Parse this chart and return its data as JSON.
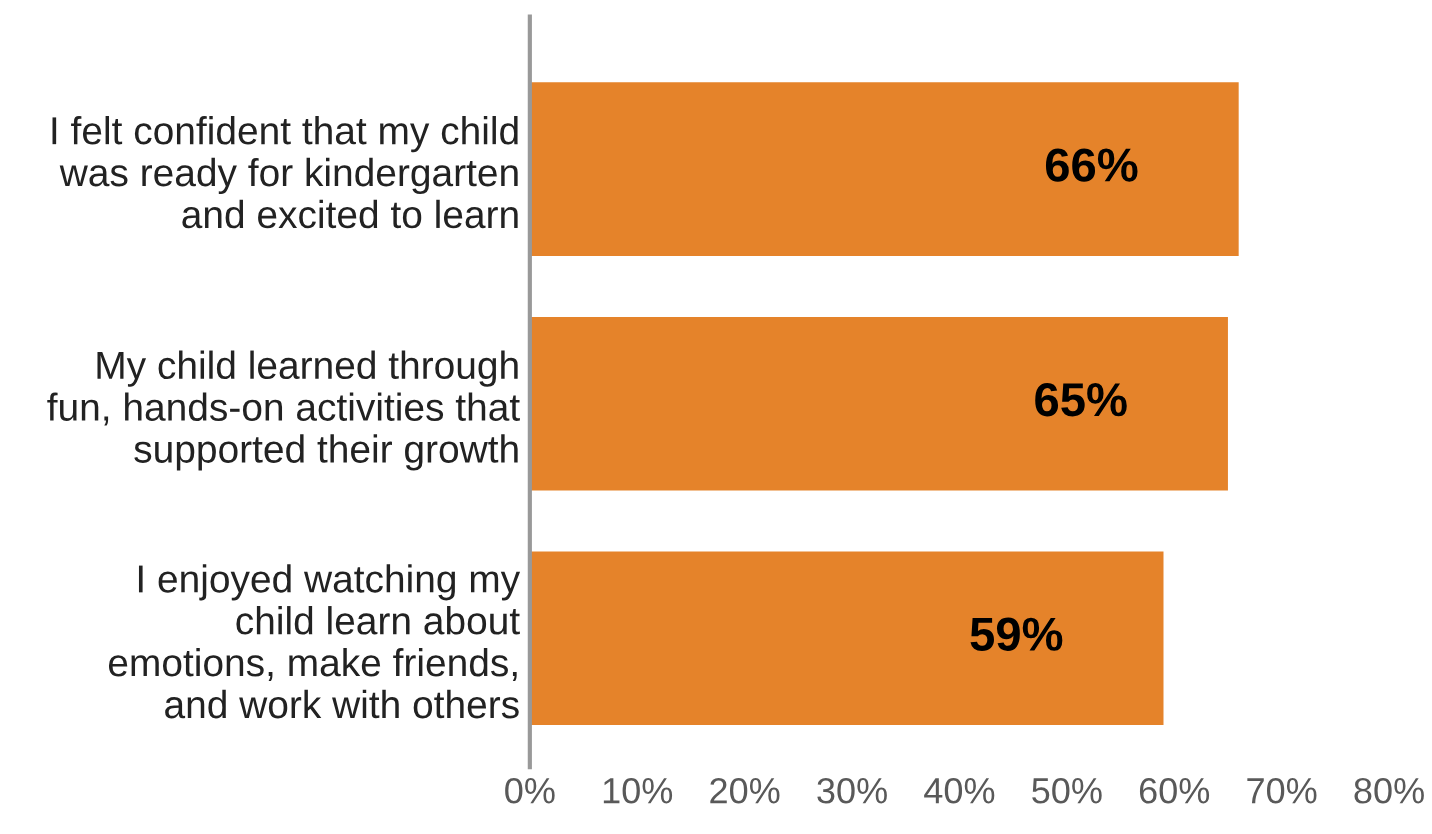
{
  "chart_data": {
    "type": "bar",
    "orientation": "horizontal",
    "categories": [
      "I felt confident that my child\nwas ready for kindergarten\nand excited to learn",
      "My child learned through\nfun, hands-on activities that\nsupported their growth",
      "I enjoyed watching my\nchild learn about\nemotions, make friends,\nand work with others"
    ],
    "values": [
      66,
      65,
      59
    ],
    "value_labels": [
      "66%",
      "65%",
      "59%"
    ],
    "color": "#e5832a",
    "xlim": [
      0,
      80
    ],
    "xticks": [
      {
        "value": 0,
        "label": "0%"
      },
      {
        "value": 10,
        "label": "10%"
      },
      {
        "value": 20,
        "label": "20%"
      },
      {
        "value": 30,
        "label": "30%"
      },
      {
        "value": 40,
        "label": "40%"
      },
      {
        "value": 50,
        "label": "50%"
      },
      {
        "value": 60,
        "label": "60%"
      },
      {
        "value": 70,
        "label": "70%"
      },
      {
        "value": 80,
        "label": "80%"
      }
    ],
    "grid": false,
    "legend": false
  }
}
